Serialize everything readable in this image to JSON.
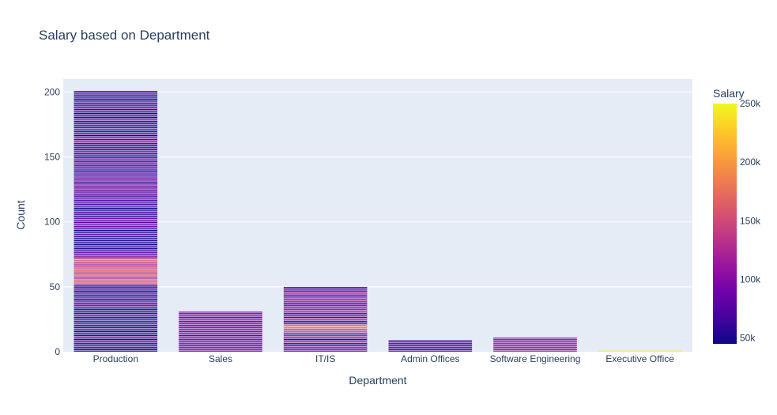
{
  "chart_data": {
    "type": "bar",
    "title": "Salary based on Department",
    "xlabel": "Department",
    "ylabel": "Count",
    "categories": [
      "Production",
      "Sales",
      "IT/IS",
      "Admin Offices",
      "Software Engineering",
      "Executive Office"
    ],
    "values": [
      201,
      31,
      50,
      9,
      11,
      1
    ],
    "ylim": [
      0,
      210
    ],
    "yticks": [
      0,
      50,
      100,
      150,
      200
    ],
    "grid": true,
    "colorbar": {
      "title": "Salary",
      "range": [
        45000,
        250000
      ],
      "ticks": [
        50000,
        100000,
        150000,
        200000,
        250000
      ],
      "tick_labels": [
        "50k",
        "100k",
        "150k",
        "200k",
        "250k"
      ],
      "colorscale": [
        "#0d0887",
        "#46039f",
        "#7201a8",
        "#9c179e",
        "#bd3786",
        "#d8576b",
        "#ed7953",
        "#fb9f3a",
        "#fdca26",
        "#f0f921"
      ]
    },
    "segment_salary_profile": [
      {
        "category": "Production",
        "low": 48000,
        "typical": 68000,
        "high_band_fraction": [
          0.26,
          0.36
        ],
        "high": 170000,
        "outlier_low_fraction": [
          0.0,
          0.02
        ],
        "outlier_low": 45000
      },
      {
        "category": "Sales",
        "low": 55000,
        "typical": 95000,
        "high": 110000
      },
      {
        "category": "IT/IS",
        "low": 55000,
        "typical": 90000,
        "high_band_fraction": [
          0.3,
          0.42
        ],
        "high": 200000
      },
      {
        "category": "Admin Offices",
        "low": 55000,
        "typical": 70000,
        "high": 90000
      },
      {
        "category": "Software Engineering",
        "low": 90000,
        "typical": 105000,
        "high": 120000
      },
      {
        "category": "Executive Office",
        "low": 250000,
        "typical": 250000,
        "high": 250000
      }
    ]
  }
}
